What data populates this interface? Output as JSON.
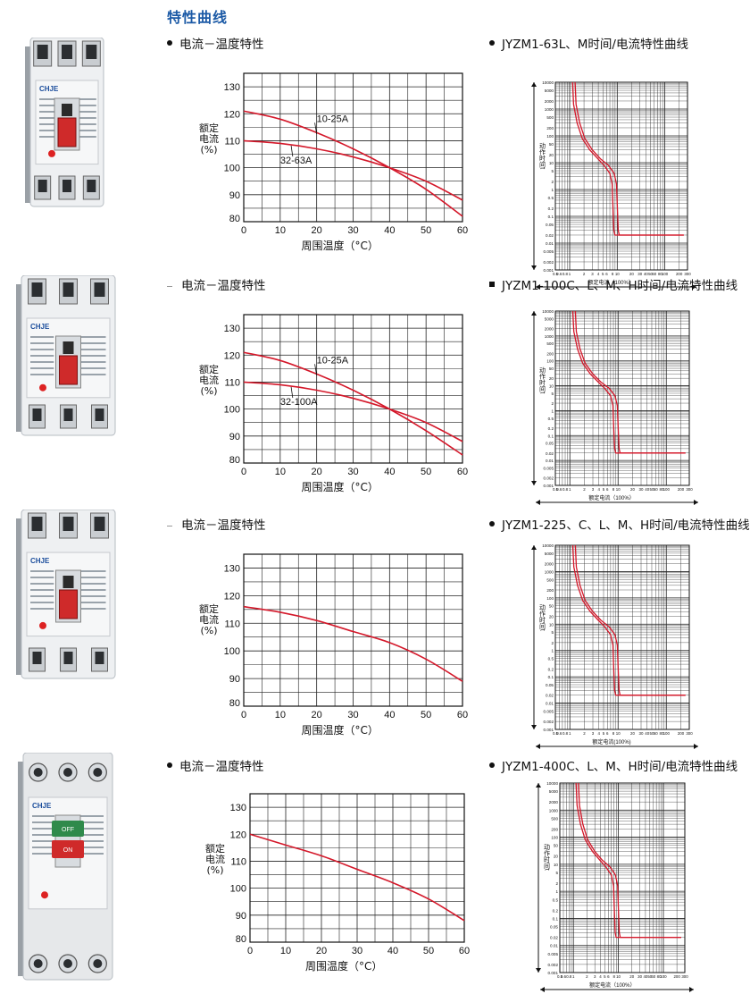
{
  "page_title": "特性曲线",
  "sections": [
    {
      "left_heading": "电流－温度特性",
      "right_heading": "JYZM1-63L、M时间/电流特性曲线",
      "right_marker": "bullet",
      "left_marker": "bullet",
      "product_marking": "CHJE",
      "chart_data": {
        "type": "line",
        "title": "",
        "xlabel": "周围温度（°C）",
        "ylabel": "额定电流(%)",
        "x_ticks": [
          0,
          10,
          20,
          30,
          40,
          50,
          60
        ],
        "y_ticks": [
          80,
          90,
          100,
          110,
          120,
          130
        ],
        "xlim": [
          0,
          60
        ],
        "ylim": [
          80,
          135
        ],
        "series": [
          {
            "name": "10-25A",
            "x": [
              0,
              10,
              20,
              30,
              40,
              50,
              60
            ],
            "y": [
              121,
              118,
              113,
              107,
              100,
              92,
              82
            ]
          },
          {
            "name": "32-63A",
            "x": [
              0,
              10,
              20,
              30,
              40,
              50,
              60
            ],
            "y": [
              110,
              109,
              107,
              104,
              100,
              95,
              88
            ]
          }
        ]
      },
      "curve_labels": {
        "y_axis": "动作时间t",
        "x_axis": "额定电流（100%）",
        "y_ticks": [
          "10000",
          "5000",
          "2000",
          "1000",
          "500",
          "200",
          "100",
          "50",
          "20",
          "10",
          "5",
          "2",
          "1",
          "0.5",
          "0.2",
          "0.1",
          "0.05",
          "0.02",
          "0.01",
          "0.005",
          "0.002",
          "0.001"
        ],
        "x_ticks": [
          "0.5",
          "0.6",
          "0.8",
          "1",
          "2",
          "3",
          "4",
          "5",
          "6",
          "8",
          "10",
          "20",
          "30",
          "40",
          "50",
          "60",
          "80",
          "100",
          "200",
          "300"
        ]
      }
    },
    {
      "left_heading": "电流－温度特性",
      "right_heading": "JYZM1-100C、L、M、H时间/电流特性曲线",
      "right_marker": "square",
      "left_marker": "dash",
      "product_marking": "CHJE",
      "chart_data": {
        "type": "line",
        "title": "",
        "xlabel": "周围温度（°C）",
        "ylabel": "额定电流(%)",
        "x_ticks": [
          0,
          10,
          20,
          30,
          40,
          50,
          60
        ],
        "y_ticks": [
          80,
          90,
          100,
          110,
          120,
          130
        ],
        "xlim": [
          0,
          60
        ],
        "ylim": [
          80,
          135
        ],
        "series": [
          {
            "name": "10-25A",
            "x": [
              0,
              10,
              20,
              30,
              40,
              50,
              60
            ],
            "y": [
              121,
              118,
              113,
              107,
              100,
              92,
              83
            ]
          },
          {
            "name": "32-100A",
            "x": [
              0,
              10,
              20,
              30,
              40,
              50,
              60
            ],
            "y": [
              110,
              109,
              107,
              104,
              100,
              95,
              88
            ]
          }
        ]
      },
      "curve_labels": {
        "y_axis": "动作时间t",
        "x_axis": "额定电流（100%）",
        "y_ticks": [
          "10000",
          "5000",
          "2000",
          "1000",
          "500",
          "200",
          "100",
          "50",
          "20",
          "10",
          "5",
          "2",
          "1",
          "0.5",
          "0.2",
          "0.1",
          "0.05",
          "0.02",
          "0.01",
          "0.005",
          "0.002",
          "0.001"
        ],
        "x_ticks": [
          "0.5",
          "0.6",
          "0.8",
          "1",
          "2",
          "3",
          "4",
          "5",
          "6",
          "8",
          "10",
          "20",
          "30",
          "40",
          "50",
          "60",
          "80",
          "100",
          "200",
          "300"
        ]
      }
    },
    {
      "left_heading": "电流－温度特性",
      "right_heading": "JYZM1-225、C、L、M、H时间/电流特性曲线",
      "right_marker": "bullet",
      "left_marker": "dash",
      "product_marking": "CHJE",
      "chart_data": {
        "type": "line",
        "title": "",
        "xlabel": "周围温度（°C）",
        "ylabel": "额定电流(%)",
        "x_ticks": [
          0,
          10,
          20,
          30,
          40,
          50,
          60
        ],
        "y_ticks": [
          80,
          90,
          100,
          110,
          120,
          130
        ],
        "xlim": [
          0,
          60
        ],
        "ylim": [
          80,
          135
        ],
        "series": [
          {
            "x": [
              0,
              10,
              20,
              30,
              40,
              50,
              60
            ],
            "y": [
              116,
              114,
              111,
              107,
              103,
              97,
              89
            ]
          }
        ]
      },
      "curve_labels": {
        "y_axis": "动作时间t",
        "x_axis": "额定电流(100%)",
        "y_ticks": [
          "10000",
          "5000",
          "2000",
          "1000",
          "500",
          "200",
          "100",
          "50",
          "20",
          "10",
          "5",
          "2",
          "1",
          "0.5",
          "0.2",
          "0.1",
          "0.05",
          "0.02",
          "0.01",
          "0.005",
          "0.002",
          "0.001"
        ],
        "x_ticks": [
          "0.5",
          "0.6",
          "0.8",
          "1",
          "2",
          "3",
          "4",
          "5",
          "6",
          "8",
          "10",
          "20",
          "30",
          "40",
          "50",
          "60",
          "80",
          "100",
          "200",
          "300"
        ]
      }
    },
    {
      "left_heading": "电流－温度特性",
      "right_heading": "JYZM1-400C、L、M、H时间/电流特性曲线",
      "right_marker": "bullet",
      "left_marker": "bullet",
      "product_marking": "CHJE",
      "product_buttons": [
        "OFF",
        "ON"
      ],
      "chart_data": {
        "type": "line",
        "title": "",
        "xlabel": "周围温度（°C）",
        "ylabel": "额定电流(%)",
        "x_ticks": [
          0,
          10,
          20,
          30,
          40,
          50,
          60
        ],
        "y_ticks": [
          80,
          90,
          100,
          110,
          120,
          130
        ],
        "xlim": [
          0,
          60
        ],
        "ylim": [
          80,
          135
        ],
        "series": [
          {
            "x": [
              0,
              10,
              20,
              30,
              40,
              50,
              60
            ],
            "y": [
              120,
              116,
              112,
              107,
              102,
              96,
              88
            ]
          }
        ]
      },
      "curve_labels": {
        "y_axis": "动作时间t",
        "x_axis": "额定电流（100%）",
        "y_ticks": [
          "10000",
          "5000",
          "2000",
          "1000",
          "500",
          "200",
          "100",
          "50",
          "20",
          "10",
          "5",
          "2",
          "1",
          "0.5",
          "0.2",
          "0.1",
          "0.05",
          "0.02",
          "0.01",
          "0.005",
          "0.002",
          "0.001"
        ],
        "x_ticks": [
          "0.5",
          "0.6",
          "0.8",
          "1",
          "2",
          "3",
          "4",
          "5",
          "6",
          "8",
          "10",
          "20",
          "30",
          "40",
          "50",
          "60",
          "80",
          "100",
          "200",
          "300"
        ]
      }
    }
  ],
  "colors": {
    "title": "#1c5aa6",
    "curve": "#d4182a",
    "grid": "#222222",
    "breaker_body": "#e9ecef",
    "breaker_handle": "#cf2a2a"
  }
}
